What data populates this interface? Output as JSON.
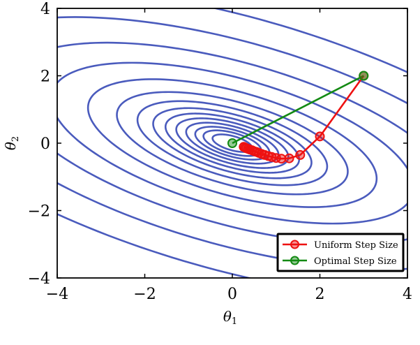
{
  "chart_data": {
    "type": "contour",
    "xlabel": "θ",
    "xlabel_sub": "1",
    "ylabel": "θ",
    "ylabel_sub": "2",
    "xlim": [
      -4,
      4
    ],
    "ylim": [
      -4,
      4
    ],
    "xticks": [
      -4,
      -2,
      0,
      2,
      4
    ],
    "yticks": [
      -4,
      -2,
      0,
      2,
      4
    ],
    "xtick_labels": [
      "−4",
      "−2",
      "0",
      "2",
      "4"
    ],
    "ytick_labels": [
      "−4",
      "−2",
      "0",
      "2",
      "4"
    ],
    "grid": false,
    "legend_position": "lower right",
    "contour": {
      "color": "#4a5bbd",
      "center": [
        0,
        0
      ],
      "major_direction": [
        0.9285,
        -0.3714
      ],
      "axis_ratio": 2.35,
      "semi_major_levels": [
        0.48,
        0.7,
        0.9,
        1.12,
        1.36,
        1.62,
        1.92,
        2.3,
        2.8,
        3.5,
        4.4,
        5.5,
        6.9,
        8.6
      ]
    },
    "series": [
      {
        "name": "Uniform Step Size",
        "color": "#ee1111",
        "x": [
          3.0,
          2.0,
          1.55,
          1.3,
          1.12,
          1.0,
          0.9,
          0.82,
          0.74,
          0.67,
          0.61,
          0.55,
          0.5,
          0.45,
          0.4,
          0.36,
          0.32,
          0.29,
          0.26
        ],
        "y": [
          2.0,
          0.2,
          -0.35,
          -0.45,
          -0.46,
          -0.44,
          -0.41,
          -0.38,
          -0.35,
          -0.32,
          -0.29,
          -0.26,
          -0.24,
          -0.21,
          -0.19,
          -0.17,
          -0.15,
          -0.13,
          -0.11
        ]
      },
      {
        "name": "Optimal Step Size",
        "color": "#138a13",
        "x": [
          3.0,
          0.0
        ],
        "y": [
          2.0,
          0.0
        ]
      }
    ]
  }
}
